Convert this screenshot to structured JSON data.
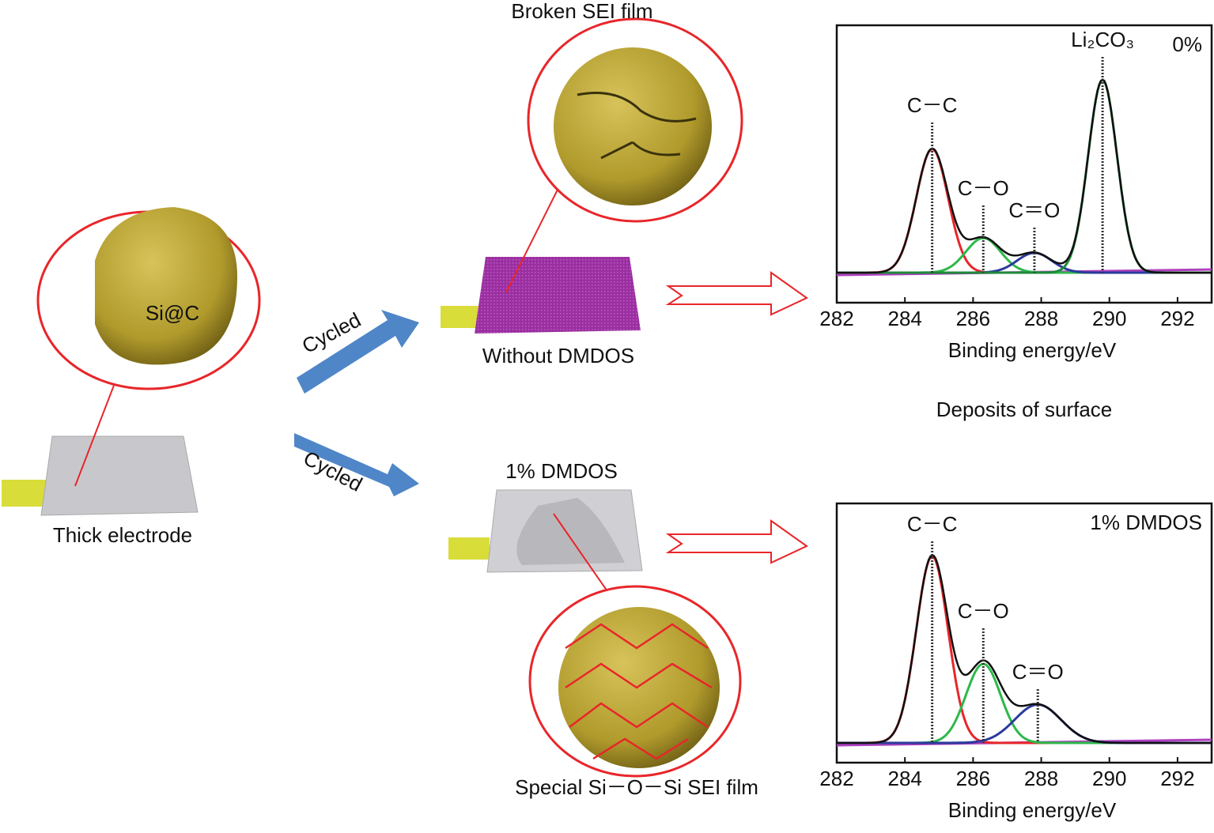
{
  "diagram": {
    "start_label": "Thick electrode",
    "particle_label": "Si@C",
    "arrow_label_top": "Cycled",
    "arrow_label_bottom": "Cycled",
    "top_callout": "Broken SEI film",
    "top_electrode": "Without DMDOS",
    "bottom_electrode": "1% DMDOS",
    "bottom_callout": "Special Si－O－Si SEI film",
    "middle_caption": "Deposits of surface"
  },
  "charts": [
    {
      "type": "line",
      "corner_label": "0%",
      "x_label": "Binding energy/eV",
      "xlim": [
        282,
        293
      ],
      "xticks": [
        282,
        284,
        286,
        288,
        290,
        292
      ],
      "ylim": [
        0,
        1
      ],
      "peaks": [
        {
          "label": "C－C",
          "x": 284.8,
          "height": 0.5,
          "fwhm": 1.1,
          "color": "#e8262a"
        },
        {
          "label": "C－O",
          "x": 286.3,
          "height": 0.14,
          "fwhm": 1.2,
          "color": "#2db84a"
        },
        {
          "label": "C＝O",
          "x": 287.8,
          "height": 0.08,
          "fwhm": 1.2,
          "color": "#2b3a9c"
        },
        {
          "label": "Li₂CO₃",
          "x": 289.8,
          "height": 0.78,
          "fwhm": 1.0,
          "color": "#1e8a3a"
        }
      ]
    },
    {
      "type": "line",
      "corner_label": "1% DMDOS",
      "x_label": "Binding energy/eV",
      "xlim": [
        282,
        293
      ],
      "xticks": [
        282,
        284,
        286,
        288,
        290,
        292
      ],
      "ylim": [
        0,
        1
      ],
      "peaks": [
        {
          "label": "C－C",
          "x": 284.8,
          "height": 0.78,
          "fwhm": 1.1,
          "color": "#e8262a"
        },
        {
          "label": "C－O",
          "x": 286.3,
          "height": 0.33,
          "fwhm": 1.2,
          "color": "#2db84a"
        },
        {
          "label": "C＝O",
          "x": 287.9,
          "height": 0.16,
          "fwhm": 1.6,
          "color": "#2b3a9c"
        }
      ]
    }
  ]
}
